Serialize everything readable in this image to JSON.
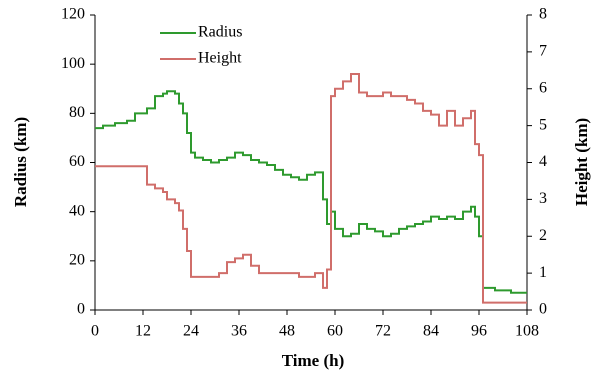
{
  "chart_data": {
    "type": "line",
    "xlabel": "Time (h)",
    "ylabel": "Radius (km)",
    "y2label": "Height (km)",
    "x": [
      0,
      2,
      5,
      8,
      10,
      13,
      15,
      17,
      18,
      20,
      21,
      22,
      23,
      24,
      25,
      27,
      29,
      31,
      33,
      35,
      37,
      39,
      41,
      43,
      45,
      47,
      49,
      51,
      53,
      55,
      57,
      58,
      59,
      60,
      62,
      64,
      66,
      68,
      70,
      72,
      74,
      76,
      78,
      80,
      82,
      84,
      86,
      88,
      90,
      92,
      94,
      95,
      96,
      97,
      100,
      104,
      108
    ],
    "series": [
      {
        "name": "Radius",
        "color": "#2e9a2e",
        "values": [
          74,
          75,
          76,
          77,
          80,
          82,
          87,
          88,
          89,
          88,
          84,
          80,
          72,
          64,
          62,
          61,
          60,
          61,
          62,
          64,
          63,
          61,
          60,
          59,
          57,
          55,
          54,
          53,
          55,
          56,
          45,
          35,
          40,
          33,
          30,
          31,
          35,
          33,
          32,
          30,
          31,
          33,
          34,
          35,
          36,
          38,
          37,
          38,
          37,
          40,
          42,
          38,
          30,
          9,
          8,
          7,
          7
        ]
      },
      {
        "name": "Height",
        "color": "#d06e6a",
        "axis": "y2",
        "values": [
          3.9,
          3.9,
          3.9,
          3.9,
          3.9,
          3.4,
          3.3,
          3.2,
          3.0,
          2.9,
          2.7,
          2.2,
          1.6,
          0.9,
          0.9,
          0.9,
          0.9,
          1.0,
          1.3,
          1.4,
          1.5,
          1.2,
          1.0,
          1.0,
          1.0,
          1.0,
          1.0,
          0.9,
          0.9,
          1.0,
          0.6,
          1.1,
          5.8,
          6.0,
          6.2,
          6.4,
          5.9,
          5.8,
          5.8,
          5.9,
          5.8,
          5.8,
          5.7,
          5.6,
          5.4,
          5.3,
          5.0,
          5.4,
          5.0,
          5.2,
          5.4,
          4.5,
          4.2,
          0.2,
          0.2,
          0.2,
          0.2
        ]
      }
    ],
    "xlim": [
      0,
      108
    ],
    "xticks": [
      0,
      12,
      24,
      36,
      48,
      60,
      72,
      84,
      96,
      108
    ],
    "ylim": [
      0,
      120
    ],
    "yticks": [
      0,
      20,
      40,
      60,
      80,
      100,
      120
    ],
    "y2lim": [
      0,
      8
    ],
    "y2ticks": [
      0,
      1,
      2,
      3,
      4,
      5,
      6,
      7,
      8
    ],
    "legend": "upper left"
  }
}
